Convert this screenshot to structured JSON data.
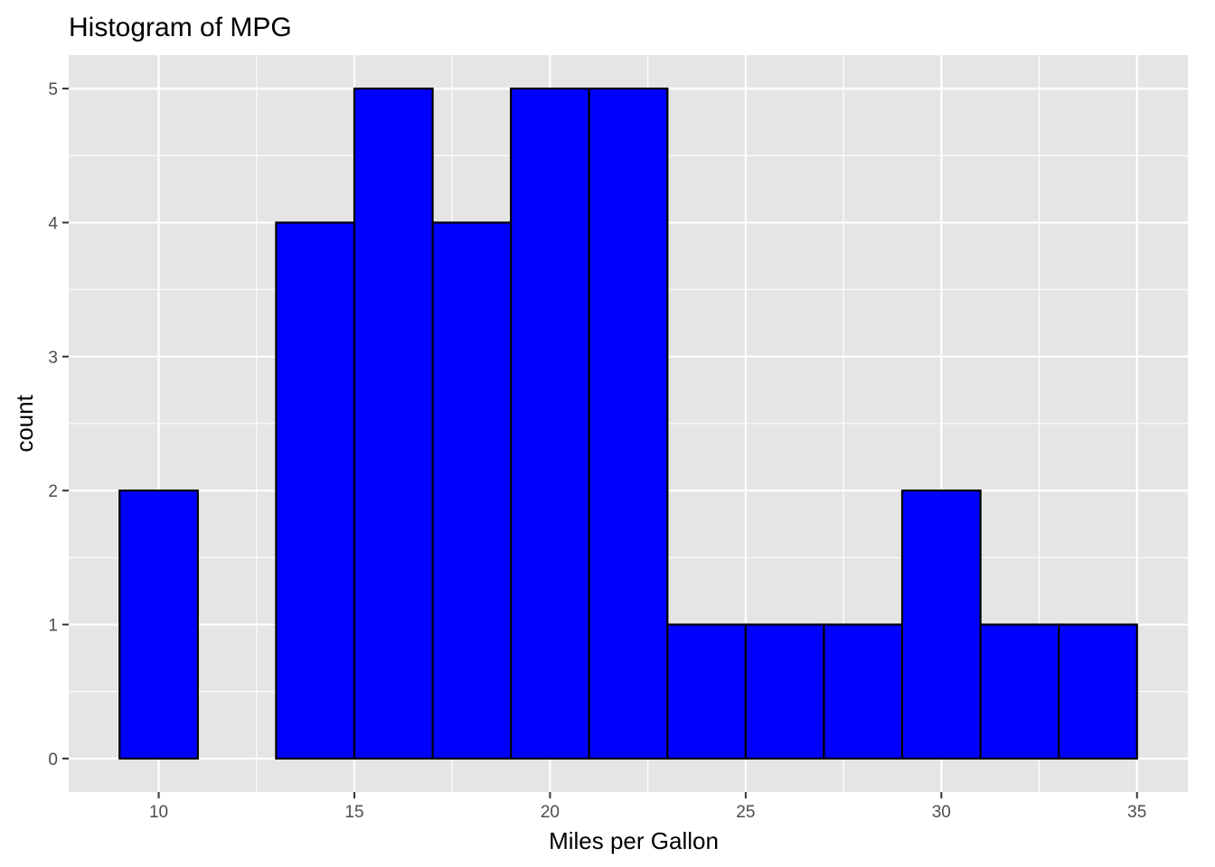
{
  "chart_data": {
    "type": "bar",
    "title": "Histogram of MPG",
    "xlabel": "Miles per Gallon",
    "ylabel": "count",
    "bin_width": 2,
    "bins": [
      {
        "x0": 9,
        "x1": 11,
        "count": 2
      },
      {
        "x0": 11,
        "x1": 13,
        "count": 0
      },
      {
        "x0": 13,
        "x1": 15,
        "count": 4
      },
      {
        "x0": 15,
        "x1": 17,
        "count": 5
      },
      {
        "x0": 17,
        "x1": 19,
        "count": 4
      },
      {
        "x0": 19,
        "x1": 21,
        "count": 5
      },
      {
        "x0": 21,
        "x1": 23,
        "count": 5
      },
      {
        "x0": 23,
        "x1": 25,
        "count": 1
      },
      {
        "x0": 25,
        "x1": 27,
        "count": 1
      },
      {
        "x0": 27,
        "x1": 29,
        "count": 1
      },
      {
        "x0": 29,
        "x1": 31,
        "count": 2
      },
      {
        "x0": 31,
        "x1": 33,
        "count": 1
      },
      {
        "x0": 33,
        "x1": 35,
        "count": 1
      }
    ],
    "x_ticks": [
      10,
      15,
      20,
      25,
      30,
      35
    ],
    "y_ticks": [
      0,
      1,
      2,
      3,
      4,
      5
    ],
    "xlim": [
      7.7,
      36.3
    ],
    "ylim": [
      -0.25,
      5.25
    ],
    "grid": true,
    "colors": {
      "bar_fill": "#0000ff",
      "bar_outline": "#000000",
      "panel_background": "#e5e5e5",
      "grid": "#ffffff"
    }
  }
}
